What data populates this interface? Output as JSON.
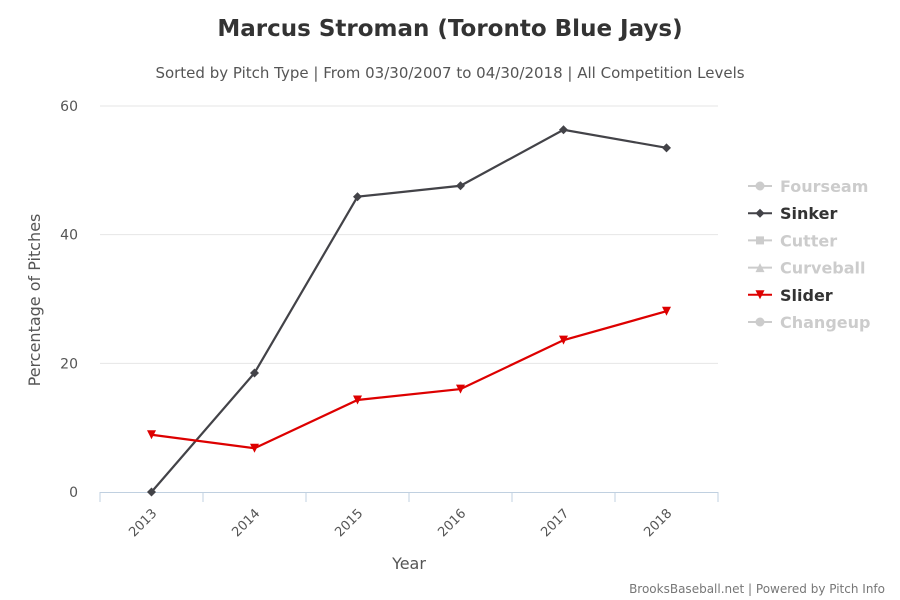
{
  "chart_data": {
    "type": "line",
    "title": "Marcus Stroman (Toronto Blue Jays)",
    "subtitle": "Sorted by Pitch Type | From 03/30/2007 to 04/30/2018 | All Competition Levels",
    "xlabel": "Year",
    "ylabel": "Percentage of Pitches",
    "categories": [
      "2013",
      "2014",
      "2015",
      "2016",
      "2017",
      "2018"
    ],
    "ylim": [
      0,
      60
    ],
    "yticks": [
      0,
      20,
      40,
      60
    ],
    "grid": true,
    "legend_position": "right",
    "legend": [
      {
        "name": "Fourseam",
        "active": false,
        "color": "#cccccc",
        "marker": "circle"
      },
      {
        "name": "Sinker",
        "active": true,
        "color": "#434348",
        "marker": "diamond"
      },
      {
        "name": "Cutter",
        "active": false,
        "color": "#cccccc",
        "marker": "square"
      },
      {
        "name": "Curveball",
        "active": false,
        "color": "#cccccc",
        "marker": "triangle"
      },
      {
        "name": "Slider",
        "active": true,
        "color": "#dd0000",
        "marker": "triangle-down"
      },
      {
        "name": "Changeup",
        "active": false,
        "color": "#cccccc",
        "marker": "circle"
      }
    ],
    "series": [
      {
        "name": "Sinker",
        "color": "#434348",
        "values": [
          0.0,
          18.5,
          45.9,
          47.6,
          56.3,
          53.5
        ]
      },
      {
        "name": "Slider",
        "color": "#dd0000",
        "values": [
          8.9,
          6.8,
          14.3,
          16.0,
          23.6,
          28.1
        ]
      }
    ],
    "credits": "BrooksBaseball.net | Powered by Pitch Info"
  }
}
